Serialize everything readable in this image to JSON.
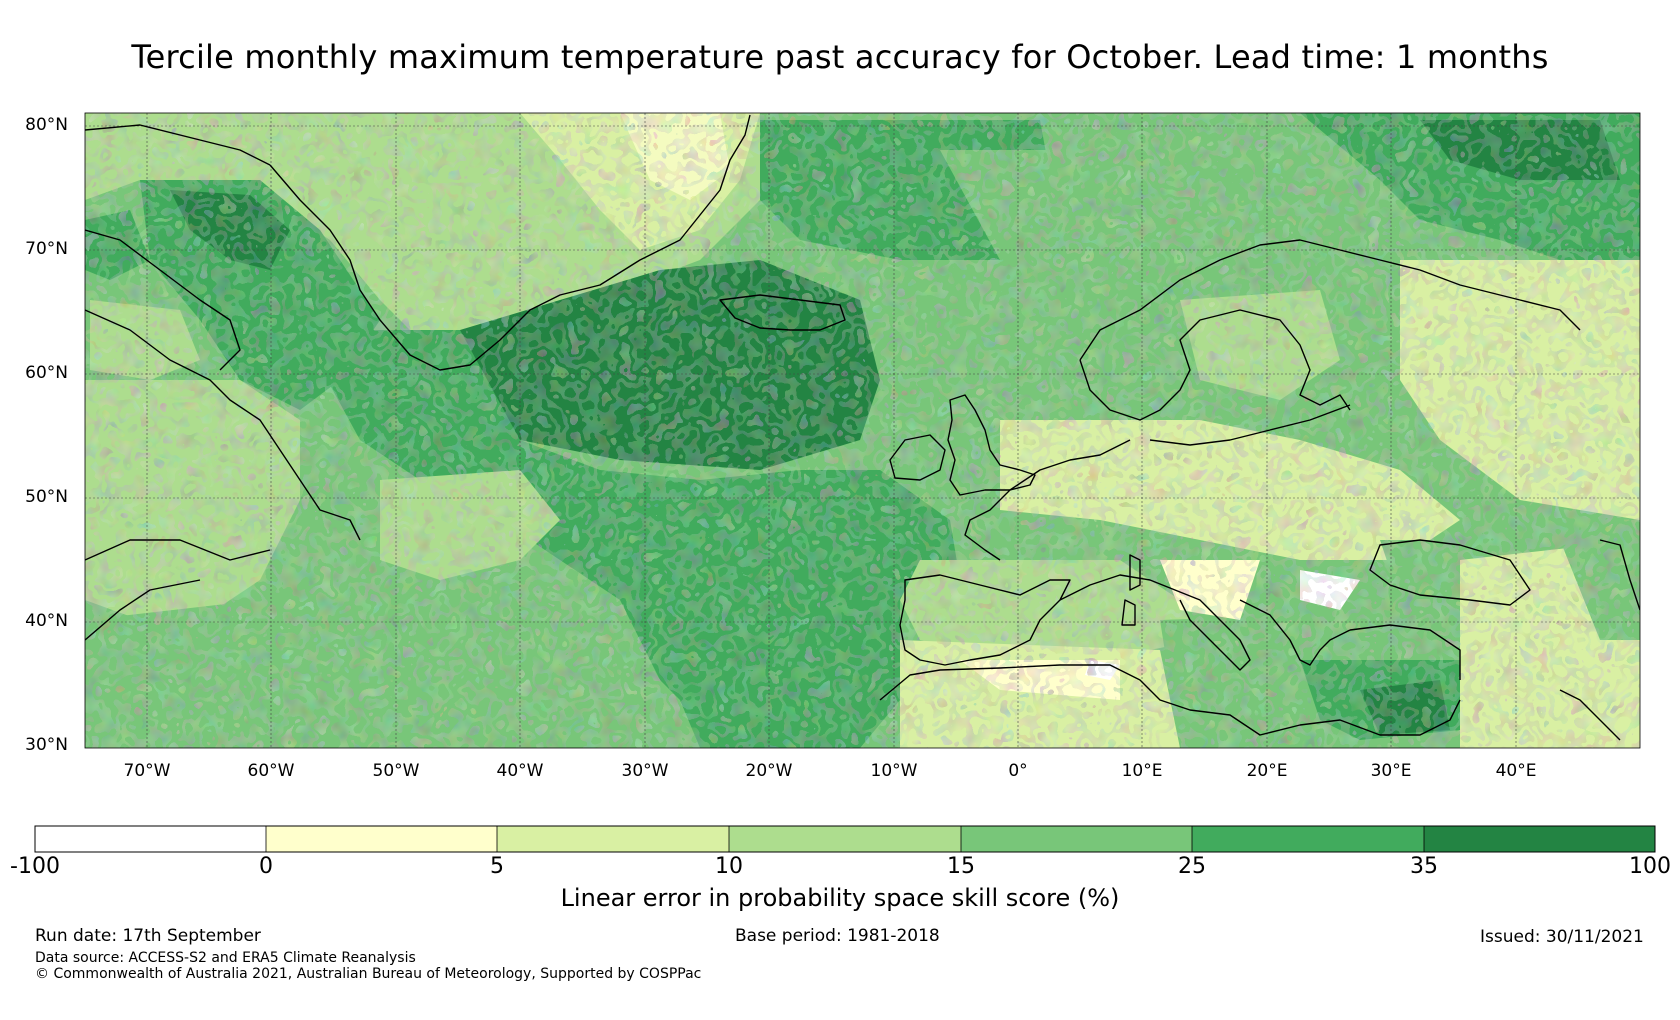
{
  "title": "Tercile monthly maximum temperature past accuracy for October. Lead time: 1 months",
  "map": {
    "lat_labels": [
      "80°N",
      "70°N",
      "60°N",
      "50°N",
      "40°N",
      "30°N"
    ],
    "lon_labels": [
      "70°W",
      "60°W",
      "50°W",
      "40°W",
      "30°W",
      "20°W",
      "10°W",
      "0°",
      "10°E",
      "20°E",
      "30°E",
      "40°E"
    ],
    "extent": {
      "lon_min": -75,
      "lon_max": 50,
      "lat_min": 30,
      "lat_max": 81
    }
  },
  "colorbar": {
    "ticks": [
      "-100",
      "0",
      "5",
      "10",
      "15",
      "25",
      "35",
      "100"
    ],
    "colors": [
      "#ffffff",
      "#ffffcc",
      "#d9f0a3",
      "#addd8e",
      "#78c679",
      "#41ab5d",
      "#238443"
    ],
    "label": "Linear error in probability space skill score (%)"
  },
  "footer": {
    "run_date": "Run date: 17th September",
    "base_period": "Base period: 1981-2018",
    "issued": "Issued: 30/11/2021",
    "data_source": "Data source: ACCESS-S2 and ERA5 Climate Reanalysis",
    "copyright": "© Commonwealth of Australia 2021, Australian Bureau of Meteorology, Supported by COSPPac"
  }
}
